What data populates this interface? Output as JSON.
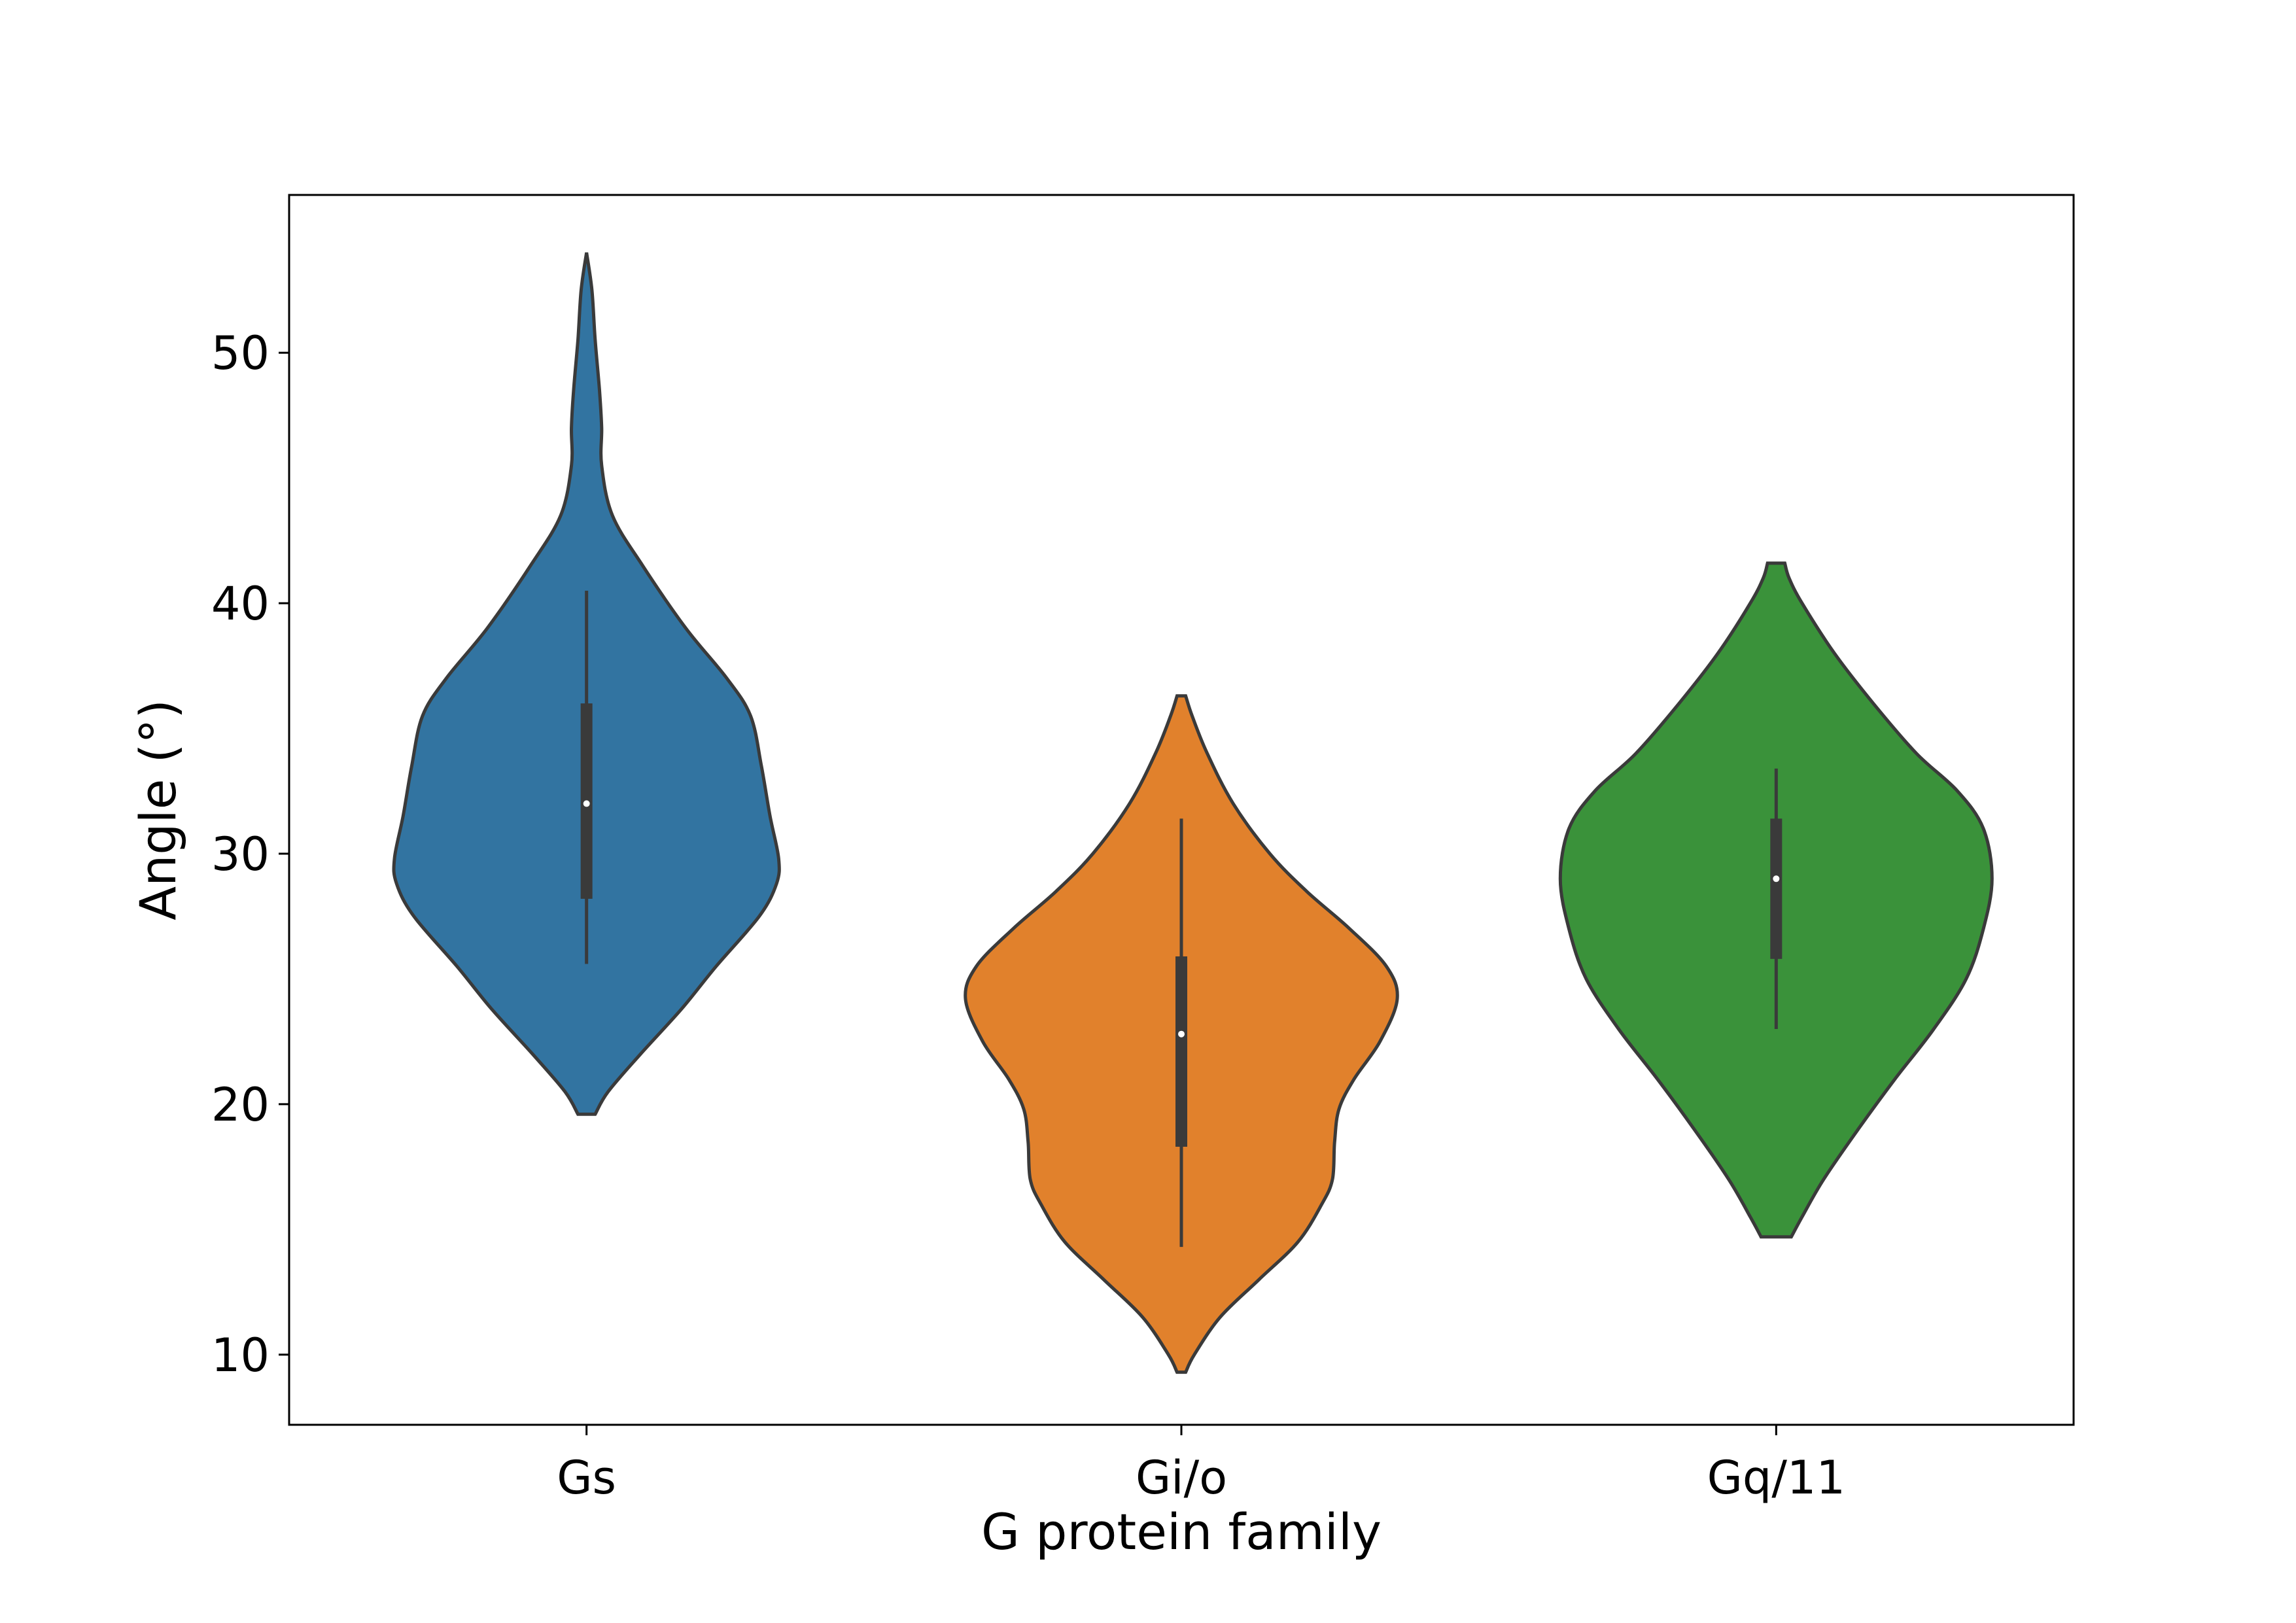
{
  "chart_data": {
    "type": "violin",
    "title": "",
    "xlabel": "G protein family",
    "ylabel": "Angle (°)",
    "categories": [
      "Gs",
      "Gi/o",
      "Gq/11"
    ],
    "y_ticks": [
      10,
      20,
      30,
      40,
      50
    ],
    "y_tick_labels": [
      "10",
      "20",
      "30",
      "40",
      "50"
    ],
    "ylim": [
      7.2,
      56.3
    ],
    "grid": false,
    "legend": "none",
    "series": [
      {
        "category": "Gs",
        "color": "#3274a1",
        "min": 19.6,
        "max": 54.0,
        "whisker_low": 25.6,
        "whisker_high": 40.5,
        "q1": 28.2,
        "median": 32.0,
        "q3": 36.0,
        "density_profile": [
          [
            19.6,
            0.04
          ],
          [
            20.5,
            0.1
          ],
          [
            22.0,
            0.25
          ],
          [
            23.8,
            0.44
          ],
          [
            25.5,
            0.6
          ],
          [
            27.5,
            0.8
          ],
          [
            28.8,
            0.88
          ],
          [
            29.8,
            0.89
          ],
          [
            31.5,
            0.85
          ],
          [
            33.5,
            0.81
          ],
          [
            35.5,
            0.76
          ],
          [
            37.0,
            0.65
          ],
          [
            39.0,
            0.46
          ],
          [
            41.5,
            0.26
          ],
          [
            43.5,
            0.12
          ],
          [
            45.5,
            0.07
          ],
          [
            47.0,
            0.07
          ],
          [
            48.5,
            0.06
          ],
          [
            50.5,
            0.04
          ],
          [
            52.5,
            0.025
          ],
          [
            54.0,
            0.0
          ]
        ]
      },
      {
        "category": "Gi/o",
        "color": "#e1812c",
        "min": 9.3,
        "max": 36.3,
        "whisker_low": 14.3,
        "whisker_high": 31.4,
        "q1": 18.3,
        "median": 22.8,
        "q3": 25.9,
        "density_profile": [
          [
            9.3,
            0.02
          ],
          [
            10.0,
            0.06
          ],
          [
            11.5,
            0.18
          ],
          [
            13.0,
            0.36
          ],
          [
            14.5,
            0.54
          ],
          [
            16.0,
            0.65
          ],
          [
            17.0,
            0.7
          ],
          [
            18.5,
            0.71
          ],
          [
            19.8,
            0.73
          ],
          [
            21.0,
            0.8
          ],
          [
            22.5,
            0.92
          ],
          [
            24.2,
            1.0
          ],
          [
            25.5,
            0.95
          ],
          [
            27.0,
            0.78
          ],
          [
            28.5,
            0.58
          ],
          [
            30.0,
            0.41
          ],
          [
            32.0,
            0.24
          ],
          [
            34.0,
            0.12
          ],
          [
            35.5,
            0.05
          ],
          [
            36.3,
            0.02
          ]
        ]
      },
      {
        "category": "Gq/11",
        "color": "#3a923a",
        "min": 14.7,
        "max": 41.6,
        "whisker_low": 23.0,
        "whisker_high": 33.4,
        "q1": 25.8,
        "median": 29.0,
        "q3": 31.4,
        "density_profile": [
          [
            14.7,
            0.07
          ],
          [
            15.5,
            0.12
          ],
          [
            17.0,
            0.22
          ],
          [
            19.0,
            0.38
          ],
          [
            21.0,
            0.55
          ],
          [
            23.0,
            0.73
          ],
          [
            25.0,
            0.88
          ],
          [
            27.0,
            0.96
          ],
          [
            29.0,
            1.0
          ],
          [
            31.0,
            0.96
          ],
          [
            32.5,
            0.84
          ],
          [
            34.0,
            0.65
          ],
          [
            36.0,
            0.45
          ],
          [
            38.0,
            0.27
          ],
          [
            40.0,
            0.12
          ],
          [
            41.0,
            0.06
          ],
          [
            41.6,
            0.04
          ]
        ]
      }
    ]
  }
}
